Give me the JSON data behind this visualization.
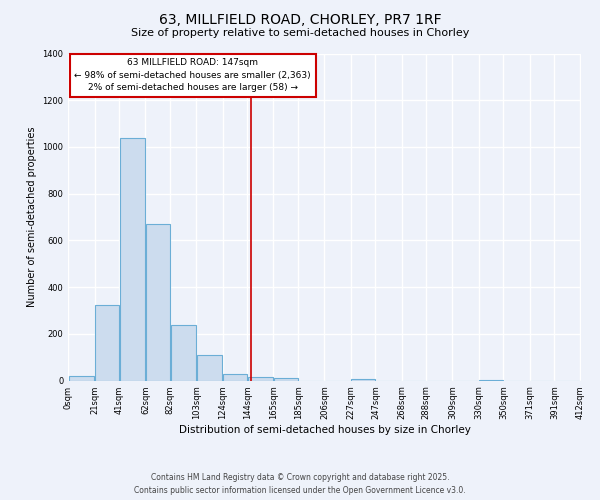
{
  "title": "63, MILLFIELD ROAD, CHORLEY, PR7 1RF",
  "subtitle": "Size of property relative to semi-detached houses in Chorley",
  "xlabel": "Distribution of semi-detached houses by size in Chorley",
  "ylabel": "Number of semi-detached properties",
  "bin_edges": [
    0,
    21,
    41,
    62,
    82,
    103,
    124,
    144,
    165,
    185,
    206,
    227,
    247,
    268,
    288,
    309,
    330,
    350,
    371,
    391,
    412
  ],
  "bin_labels": [
    "0sqm",
    "21sqm",
    "41sqm",
    "62sqm",
    "82sqm",
    "103sqm",
    "124sqm",
    "144sqm",
    "165sqm",
    "185sqm",
    "206sqm",
    "227sqm",
    "247sqm",
    "268sqm",
    "288sqm",
    "309sqm",
    "330sqm",
    "350sqm",
    "371sqm",
    "391sqm",
    "412sqm"
  ],
  "counts": [
    20,
    325,
    1040,
    672,
    240,
    108,
    28,
    15,
    10,
    0,
    0,
    8,
    0,
    0,
    0,
    0,
    5,
    0,
    0,
    0
  ],
  "bar_facecolor": "#ccdcee",
  "bar_edgecolor": "#6baed6",
  "reference_line_x": 147,
  "reference_line_color": "#cc0000",
  "annotation_title": "63 MILLFIELD ROAD: 147sqm",
  "annotation_line1": "← 98% of semi-detached houses are smaller (2,363)",
  "annotation_line2": "2% of semi-detached houses are larger (58) →",
  "annotation_box_edgecolor": "#cc0000",
  "ylim": [
    0,
    1400
  ],
  "yticks": [
    0,
    200,
    400,
    600,
    800,
    1000,
    1200,
    1400
  ],
  "footer_line1": "Contains HM Land Registry data © Crown copyright and database right 2025.",
  "footer_line2": "Contains public sector information licensed under the Open Government Licence v3.0.",
  "background_color": "#eef2fa"
}
